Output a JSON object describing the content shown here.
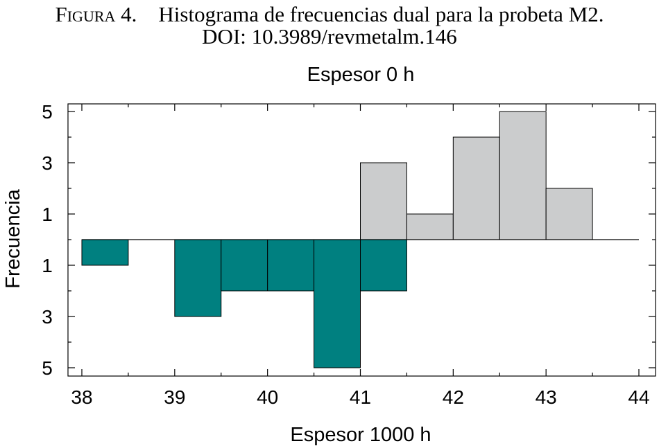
{
  "caption": {
    "label": "Figura 4.",
    "title": "Histograma de frecuencias dual para la probeta M2.",
    "doi": "DOI: 10.3989/revmetalm.146"
  },
  "chart_data": {
    "type": "bar",
    "title": "Espesor 0 h",
    "xlabel": "Espesor 1000 h",
    "ylabel": "Frecuencia",
    "xlim": [
      38,
      44
    ],
    "ylim": [
      -5,
      5
    ],
    "x_ticks": [
      38,
      39,
      40,
      41,
      42,
      43,
      44
    ],
    "y_ticks": [
      5,
      3,
      1,
      -1,
      -3,
      -5
    ],
    "y_tick_labels": [
      "5",
      "3",
      "1",
      "1",
      "3",
      "5"
    ],
    "bin_width": 0.5,
    "grid": false,
    "series": [
      {
        "bins": [
          {
            "start": 41.0,
            "count": 3
          },
          {
            "start": 41.5,
            "count": 1
          },
          {
            "start": 42.0,
            "count": 4
          },
          {
            "start": 42.5,
            "count": 5
          },
          {
            "start": 43.0,
            "count": 2
          }
        ],
        "direction": "up",
        "color": "#cbcccd"
      },
      {
        "bins": [
          {
            "start": 38.0,
            "count": 1
          },
          {
            "start": 39.0,
            "count": 3
          },
          {
            "start": 39.5,
            "count": 2
          },
          {
            "start": 40.0,
            "count": 2
          },
          {
            "start": 40.5,
            "count": 5
          },
          {
            "start": 41.0,
            "count": 2
          }
        ],
        "direction": "down",
        "color": "#008080"
      }
    ]
  }
}
